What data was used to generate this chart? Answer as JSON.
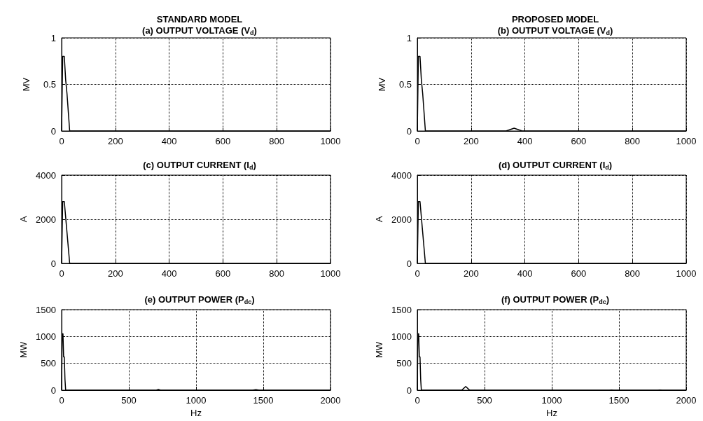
{
  "chart_data": [
    {
      "type": "line",
      "subtitle": "STANDARD MODEL",
      "title": "(a) OUTPUT VOLTAGE (V$_{d}$)",
      "ylabel": "MV",
      "grid": true,
      "marker": "none",
      "line_style": "solid",
      "xlim": [
        0,
        1000
      ],
      "xticks": [
        0,
        200,
        400,
        600,
        800,
        1000
      ],
      "ylim": [
        0,
        1
      ],
      "yticks": [
        0,
        0.5,
        1
      ],
      "series": [
        {
          "color": "#000000",
          "x": [
            0,
            4,
            10,
            15,
            20,
            25,
            30,
            1000
          ],
          "values": [
            0,
            0.8,
            0.8,
            0.55,
            0.4,
            0.2,
            0,
            0
          ]
        }
      ]
    },
    {
      "type": "line",
      "subtitle": "PROPOSED MODEL",
      "title": "(b) OUTPUT VOLTAGE (V$_{d}$)",
      "ylabel": "MV",
      "grid": true,
      "marker": "none",
      "line_style": "solid",
      "xlim": [
        0,
        1000
      ],
      "xticks": [
        0,
        200,
        400,
        600,
        800,
        1000
      ],
      "ylim": [
        0,
        1
      ],
      "yticks": [
        0,
        0.5,
        1
      ],
      "series": [
        {
          "color": "#000000",
          "x": [
            0,
            4,
            10,
            15,
            20,
            25,
            30,
            330,
            360,
            390,
            1000
          ],
          "values": [
            0,
            0.8,
            0.8,
            0.55,
            0.4,
            0.2,
            0,
            0,
            0.03,
            0,
            0
          ]
        }
      ]
    },
    {
      "type": "line",
      "title": "(c) OUTPUT CURRENT (I$_{d}$)",
      "ylabel": "A",
      "grid": true,
      "marker": "none",
      "line_style": "solid",
      "xlim": [
        0,
        1000
      ],
      "xticks": [
        0,
        200,
        400,
        600,
        800,
        1000
      ],
      "ylim": [
        0,
        4000
      ],
      "yticks": [
        0,
        2000,
        4000
      ],
      "series": [
        {
          "color": "#000000",
          "x": [
            0,
            4,
            10,
            20,
            30,
            1000
          ],
          "values": [
            0,
            2800,
            2800,
            1400,
            0,
            0
          ]
        }
      ]
    },
    {
      "type": "line",
      "title": "(d) OUTPUT CURRENT (I$_{d}$)",
      "ylabel": "A",
      "grid": true,
      "marker": "none",
      "line_style": "solid",
      "xlim": [
        0,
        1000
      ],
      "xticks": [
        0,
        200,
        400,
        600,
        800,
        1000
      ],
      "ylim": [
        0,
        4000
      ],
      "yticks": [
        0,
        2000,
        4000
      ],
      "series": [
        {
          "color": "#000000",
          "x": [
            0,
            4,
            10,
            20,
            30,
            1000
          ],
          "values": [
            0,
            2800,
            2800,
            1400,
            0,
            0
          ]
        }
      ]
    },
    {
      "type": "line",
      "title": "(e) OUTPUT POWER (P$_{dc}$)",
      "xlabel": "Hz",
      "ylabel": "MW",
      "grid": true,
      "marker": "none",
      "line_style": "solid",
      "xlim": [
        0,
        2000
      ],
      "xticks": [
        0,
        500,
        1000,
        1500,
        2000
      ],
      "ylim": [
        0,
        1500
      ],
      "yticks": [
        0,
        500,
        1000,
        1500
      ],
      "series": [
        {
          "color": "#000000",
          "x": [
            0,
            4,
            10,
            15,
            20,
            25,
            30,
            700,
            720,
            740,
            1420,
            1445,
            1470,
            2000
          ],
          "values": [
            0,
            1050,
            1050,
            620,
            620,
            200,
            0,
            0,
            15,
            0,
            0,
            10,
            0,
            0
          ]
        }
      ]
    },
    {
      "type": "line",
      "title": "(f) OUTPUT POWER (P$_{dc}$)",
      "xlabel": "Hz",
      "ylabel": "MW",
      "grid": true,
      "marker": "none",
      "line_style": "solid",
      "xlim": [
        0,
        2000
      ],
      "xticks": [
        0,
        500,
        1000,
        1500,
        2000
      ],
      "ylim": [
        0,
        1500
      ],
      "yticks": [
        0,
        500,
        1000,
        1500
      ],
      "series": [
        {
          "color": "#000000",
          "x": [
            0,
            4,
            10,
            15,
            20,
            25,
            30,
            330,
            360,
            390,
            1430,
            1445,
            1460,
            1790,
            1805,
            1820,
            2000
          ],
          "values": [
            0,
            1050,
            1050,
            620,
            620,
            200,
            0,
            0,
            70,
            0,
            0,
            5,
            0,
            0,
            5,
            0,
            0
          ]
        }
      ]
    }
  ]
}
